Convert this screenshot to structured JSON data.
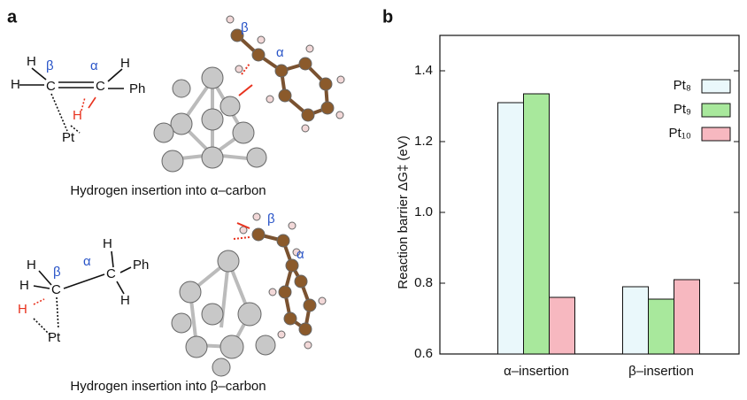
{
  "panel_labels": [
    "a",
    "b"
  ],
  "panel_a": {
    "top": {
      "caption": "Hydrogen insertion into α–carbon",
      "scheme_labels": [
        "H",
        "H",
        "β",
        "C",
        "α",
        "C",
        "H",
        "Ph",
        "H",
        "Pt"
      ],
      "model_labels": [
        "β",
        "α"
      ]
    },
    "bottom": {
      "caption": "Hydrogen insertion into β–carbon",
      "scheme_labels": [
        "H",
        "H",
        "β",
        "C",
        "α",
        "H",
        "C",
        "Ph",
        "H",
        "H",
        "Pt"
      ],
      "model_labels": [
        "β",
        "α"
      ]
    }
  },
  "chart_data": {
    "type": "bar",
    "y_label": "Reaction barrier ΔG‡ (eV)",
    "categories": [
      "α–insertion",
      "β–insertion"
    ],
    "series": [
      {
        "name": "Pt₈",
        "color": "#eaf8fb",
        "values": [
          1.31,
          0.79
        ]
      },
      {
        "name": "Pt₉",
        "color": "#a8e89c",
        "values": [
          1.335,
          0.755
        ]
      },
      {
        "name": "Pt₁₀",
        "color": "#f7b8c0",
        "values": [
          0.76,
          0.81
        ]
      }
    ],
    "ylim": [
      0.6,
      1.5
    ],
    "yticks": [
      0.6,
      0.8,
      {
        "value": 1,
        "label": "1.0"
      },
      1.2,
      1.4
    ],
    "legend": "upper right"
  }
}
